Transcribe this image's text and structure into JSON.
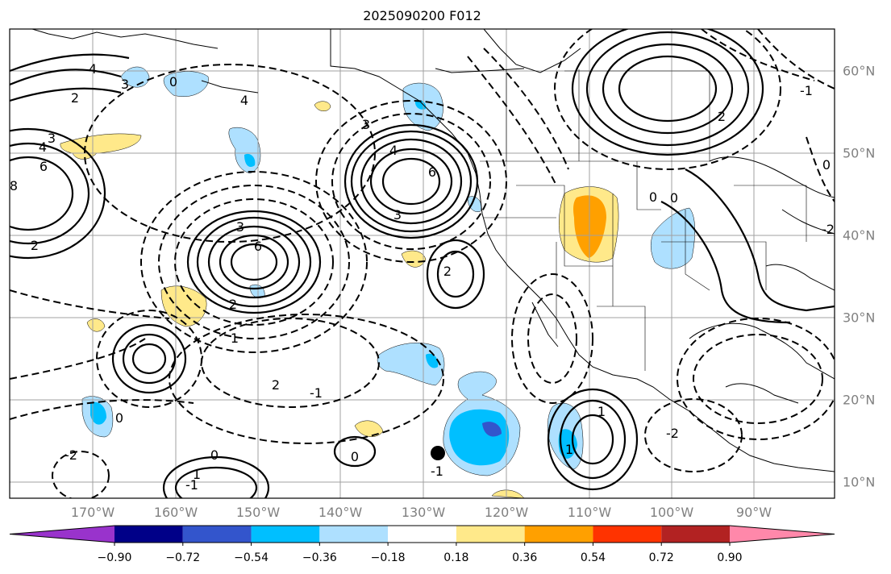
{
  "title": "2025090200 F012",
  "lon_labels": [
    "170°W",
    "160°W",
    "150°W",
    "140°W",
    "130°W",
    "120°W",
    "110°W",
    "100°W",
    "90°W"
  ],
  "lat_labels": [
    "60°N",
    "50°N",
    "40°N",
    "30°N",
    "20°N",
    "10°N"
  ],
  "colorbar": {
    "ticks": [
      "−0.90",
      "−0.72",
      "−0.54",
      "−0.36",
      "−0.18",
      "0.18",
      "0.36",
      "0.54",
      "0.72",
      "0.90"
    ],
    "colors": [
      "#9933cc",
      "#000088",
      "#3355cc",
      "#00bfff",
      "#aee0ff",
      "#ffffff",
      "#ffe98a",
      "#ffa000",
      "#ff3300",
      "#b22222",
      "#ff88aa"
    ]
  },
  "contour_labels": [
    "4",
    "2",
    "3",
    "0",
    "8",
    "6",
    "4",
    "3",
    "6",
    "3",
    "6",
    "4",
    "3",
    "2",
    "2",
    "1",
    "2",
    "-2",
    "-1",
    "0",
    "1",
    "0",
    "-1",
    "-2",
    "0",
    "-1",
    "4",
    "3",
    "2",
    "0",
    "1",
    "-1",
    "2",
    "0",
    "0",
    "-2",
    "1"
  ],
  "colors": {
    "contour": "#000000",
    "grid": "#a0a0a0",
    "coast": "#000000",
    "axis_text": "#808080"
  }
}
